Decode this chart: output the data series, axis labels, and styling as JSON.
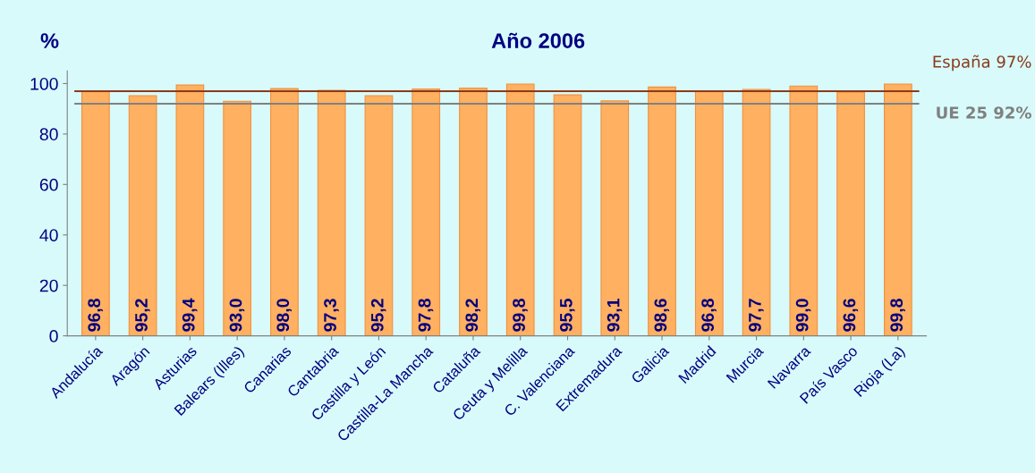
{
  "chart_data": {
    "type": "bar",
    "title": "Año 2006",
    "ylabel": "%",
    "categories": [
      "Andalucía",
      "Aragón",
      "Asturias",
      "Balears (Illes)",
      "Canarias",
      "Cantabria",
      "Castilla y León",
      "Castilla-La Mancha",
      "Cataluña",
      "Ceuta y Melilla",
      "C. Valenciana",
      "Extremadura",
      "Galicia",
      "Madrid",
      "Murcia",
      "Navarra",
      "País Vasco",
      "Rioja (La)"
    ],
    "values": [
      96.8,
      95.2,
      99.4,
      93.0,
      98.0,
      97.3,
      95.2,
      97.8,
      98.2,
      99.8,
      95.5,
      93.1,
      98.6,
      96.8,
      97.7,
      99.0,
      96.6,
      99.8
    ],
    "value_labels": [
      "96,8",
      "95,2",
      "99,4",
      "93,0",
      "98,0",
      "97,3",
      "95,2",
      "97,8",
      "98,2",
      "99,8",
      "95,5",
      "93,1",
      "98,6",
      "96,8",
      "97,7",
      "99,0",
      "96,6",
      "99,8"
    ],
    "color": "#ffb060",
    "ylim": [
      0,
      105
    ],
    "yticks": [
      0,
      20,
      40,
      60,
      80,
      100
    ],
    "ref_lines": [
      {
        "axis": "y",
        "value": 97,
        "label": "España 97%",
        "color": "#8b3a1a"
      },
      {
        "axis": "y",
        "value": 92,
        "label": "UE 25 92%",
        "color": "#808080"
      }
    ],
    "grid": false,
    "legend": false
  }
}
